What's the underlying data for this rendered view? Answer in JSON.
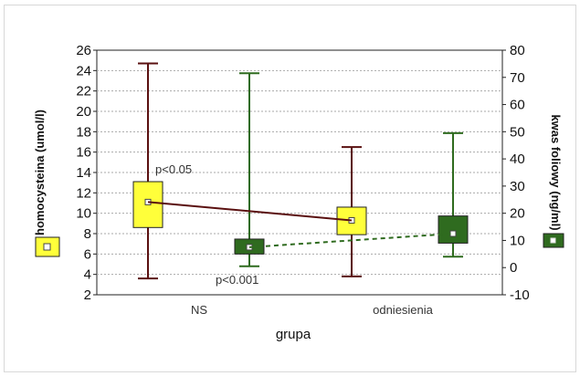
{
  "chart_data": {
    "type": "box",
    "xlabel": "grupa",
    "categories": [
      "NS",
      "odniesienia"
    ],
    "y_left": {
      "label": "homocysteina (umol/l)",
      "ticks": [
        2,
        4,
        6,
        8,
        10,
        12,
        14,
        16,
        18,
        20,
        22,
        24,
        26
      ],
      "range": [
        2,
        26
      ]
    },
    "y_right": {
      "label": "kwas foliowy (ng/ml)",
      "ticks": [
        -10,
        0,
        10,
        20,
        30,
        40,
        50,
        60,
        70,
        80
      ],
      "range": [
        -10,
        80
      ]
    },
    "series": [
      {
        "label": "homocysteina (umol/l)",
        "axis": "left",
        "color": "#ffff3a",
        "boxes": [
          {
            "category": "NS",
            "min": 3.6,
            "q1": 8.6,
            "median": 11.1,
            "q3": 13.1,
            "max": 24.7
          },
          {
            "category": "odniesienia",
            "min": 3.8,
            "q1": 7.9,
            "median": 9.3,
            "q3": 10.6,
            "max": 16.5
          }
        ],
        "line_style": "solid"
      },
      {
        "label": "kwas foliowy (ng/ml)",
        "axis": "right",
        "color": "#2f6b1f",
        "boxes": [
          {
            "category": "NS",
            "min": 0.5,
            "q1": 5,
            "median": 7.5,
            "q3": 10.5,
            "max": 71.5
          },
          {
            "category": "odniesienia",
            "min": 4,
            "q1": 9,
            "median": 12.5,
            "q3": 19,
            "max": 49.5
          }
        ],
        "line_style": "dashed"
      }
    ],
    "annotations": [
      "p<0.05",
      "p<0.001"
    ],
    "grid": true
  },
  "colors": {
    "whisker_left": "#5a1010",
    "whisker_right": "#2f6b1f",
    "grid": "#aaaaaa"
  }
}
